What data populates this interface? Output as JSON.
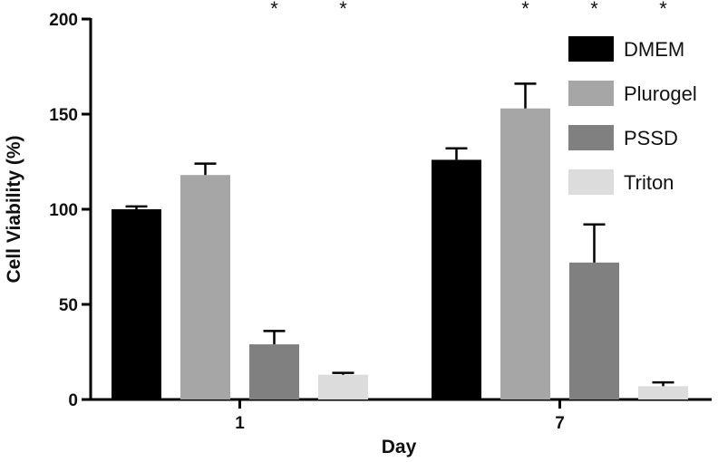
{
  "chart_data": {
    "type": "bar",
    "categories": [
      "1",
      "7"
    ],
    "xlabel": "Day",
    "ylabel": "Cell Viability (%)",
    "ylim": [
      0,
      200
    ],
    "yticks": [
      0,
      50,
      100,
      150,
      200
    ],
    "legend_position": "top-right",
    "grid": false,
    "series": [
      {
        "name": "DMEM",
        "color": "#000000",
        "values": [
          100,
          126
        ],
        "errors": [
          1.5,
          6
        ],
        "significance": [
          "",
          ""
        ]
      },
      {
        "name": "Plurogel",
        "color": "#a6a6a6",
        "values": [
          118,
          153
        ],
        "errors": [
          6,
          13
        ],
        "significance": [
          "",
          "*"
        ]
      },
      {
        "name": "PSSD",
        "color": "#808080",
        "values": [
          29,
          72
        ],
        "errors": [
          7,
          20
        ],
        "significance": [
          "*",
          "*"
        ]
      },
      {
        "name": "Triton",
        "color": "#dcdcdc",
        "values": [
          13,
          7
        ],
        "errors": [
          1,
          2
        ],
        "significance": [
          "*",
          "*"
        ]
      }
    ]
  }
}
